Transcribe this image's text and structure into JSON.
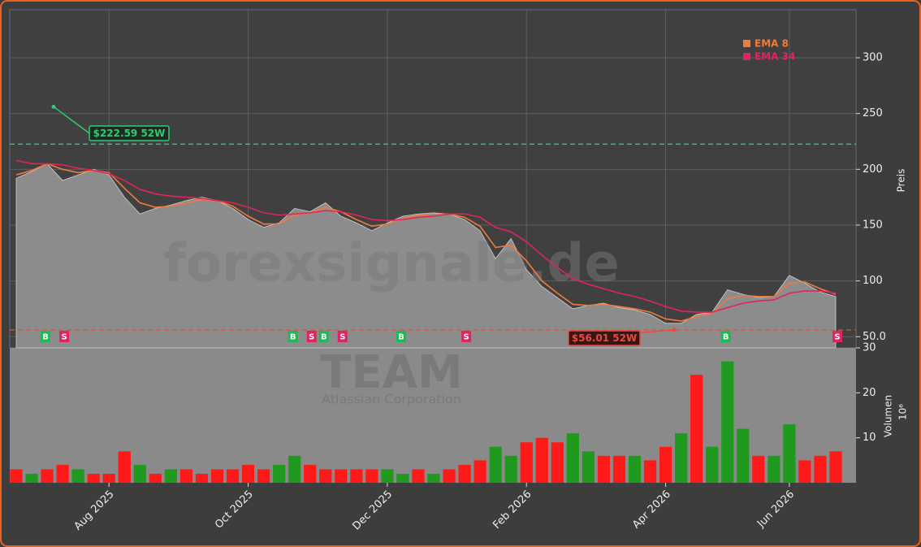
{
  "chart_data": {
    "type": "line",
    "watermark": "forexsignale.de",
    "symbol": "TEAM",
    "company": "Atlassian Corporation",
    "categories": [
      null,
      null,
      null,
      null,
      null,
      null,
      "Aug 2025",
      null,
      null,
      null,
      null,
      null,
      null,
      null,
      null,
      "Oct 2025",
      null,
      null,
      null,
      null,
      null,
      null,
      null,
      null,
      "Dec 2025",
      null,
      null,
      null,
      null,
      null,
      null,
      null,
      null,
      "Feb 2026",
      null,
      null,
      null,
      null,
      null,
      null,
      null,
      null,
      "Apr 2026",
      null,
      null,
      null,
      null,
      null,
      null,
      null,
      "Jun 2026",
      null,
      null,
      null
    ],
    "close": {
      "color": "#8c8c8c",
      "values": [
        192,
        198,
        205,
        190,
        195,
        200,
        195,
        175,
        160,
        165,
        168,
        172,
        175,
        172,
        165,
        155,
        148,
        152,
        165,
        162,
        170,
        158,
        152,
        145,
        152,
        158,
        160,
        161,
        160,
        155,
        145,
        120,
        138,
        110,
        95,
        85,
        75,
        78,
        80,
        76,
        74,
        70,
        62,
        62,
        70,
        72,
        92,
        88,
        85,
        86,
        105,
        98,
        90,
        86
      ]
    },
    "series": [
      {
        "name": "EMA 8",
        "color": "#f07a3c",
        "values": [
          195,
          199,
          205,
          200,
          197,
          199,
          197,
          183,
          170,
          166,
          167,
          170,
          173,
          172,
          167,
          158,
          151,
          151,
          159,
          161,
          166,
          162,
          155,
          149,
          151,
          156,
          159,
          160,
          160,
          157,
          149,
          130,
          132,
          118,
          100,
          89,
          79,
          78,
          79,
          77,
          75,
          72,
          66,
          64,
          68,
          71,
          84,
          87,
          86,
          86,
          98,
          99,
          93,
          88
        ]
      },
      {
        "name": "EMA 34",
        "color": "#e0245e",
        "values": [
          208,
          205,
          205,
          204,
          201,
          199,
          196,
          190,
          182,
          178,
          176,
          175,
          174,
          172,
          170,
          166,
          161,
          159,
          160,
          161,
          163,
          162,
          159,
          155,
          154,
          155,
          157,
          158,
          160,
          160,
          157,
          148,
          144,
          135,
          123,
          112,
          102,
          97,
          93,
          89,
          86,
          82,
          77,
          73,
          72,
          72,
          76,
          80,
          82,
          83,
          89,
          91,
          91,
          89
        ]
      }
    ],
    "ylim": [
      40,
      343
    ],
    "yticks": [
      {
        "value": 50,
        "label": "50.0"
      },
      100,
      150,
      200,
      250,
      300
    ],
    "ylabel": "Preis",
    "grid": true,
    "legend": "upper right",
    "high": {
      "value": 222.59,
      "label": "$222.59 52W",
      "color": "#2ecc71"
    },
    "low": {
      "value": 56.01,
      "label": "$56.01 52W",
      "color": "#e74c3c"
    },
    "signals": [
      null,
      null,
      "B",
      "S",
      null,
      null,
      null,
      null,
      null,
      null,
      null,
      null,
      null,
      null,
      null,
      null,
      null,
      null,
      "B",
      "S",
      "B",
      "S",
      null,
      null,
      null,
      "B",
      null,
      null,
      null,
      "S",
      null,
      null,
      null,
      null,
      null,
      null,
      null,
      null,
      null,
      null,
      null,
      null,
      null,
      null,
      null,
      null,
      "B",
      null,
      null,
      null,
      null,
      null,
      null,
      "S"
    ],
    "signal_colors": {
      "B": "#1db954",
      "S": "#e0245e"
    },
    "volume": {
      "values": [
        3,
        2,
        3,
        4,
        3,
        2,
        2,
        7,
        4,
        2,
        3,
        3,
        2,
        3,
        3,
        4,
        3,
        4,
        6,
        4,
        3,
        3,
        3,
        3,
        3,
        2,
        3,
        2,
        3,
        4,
        5,
        8,
        6,
        9,
        10,
        9,
        11,
        7,
        6,
        6,
        6,
        5,
        8,
        11,
        24,
        8,
        27,
        12,
        6,
        6,
        13,
        5,
        6,
        7
      ],
      "colors": [
        "#ff1a1a",
        "#1f9a1f",
        "#ff1a1a",
        "#ff1a1a",
        "#1f9a1f",
        "#ff1a1a",
        "#ff1a1a",
        "#ff1a1a",
        "#1f9a1f",
        "#ff1a1a",
        "#1f9a1f",
        "#ff1a1a",
        "#ff1a1a",
        "#ff1a1a",
        "#ff1a1a",
        "#ff1a1a",
        "#ff1a1a",
        "#1f9a1f",
        "#1f9a1f",
        "#ff1a1a",
        "#ff1a1a",
        "#ff1a1a",
        "#ff1a1a",
        "#ff1a1a",
        "#1f9a1f",
        "#1f9a1f",
        "#ff1a1a",
        "#1f9a1f",
        "#ff1a1a",
        "#ff1a1a",
        "#ff1a1a",
        "#1f9a1f",
        "#1f9a1f",
        "#ff1a1a",
        "#ff1a1a",
        "#ff1a1a",
        "#1f9a1f",
        "#1f9a1f",
        "#ff1a1a",
        "#ff1a1a",
        "#1f9a1f",
        "#ff1a1a",
        "#ff1a1a",
        "#1f9a1f",
        "#ff1a1a",
        "#1f9a1f",
        "#1f9a1f",
        "#1f9a1f",
        "#ff1a1a",
        "#1f9a1f",
        "#1f9a1f",
        "#ff1a1a",
        "#ff1a1a",
        "#ff1a1a"
      ],
      "ylim": [
        0,
        30
      ],
      "yticks": [
        10,
        20,
        30
      ],
      "ylabel": "Volumen",
      "unit": "10⁶"
    }
  }
}
